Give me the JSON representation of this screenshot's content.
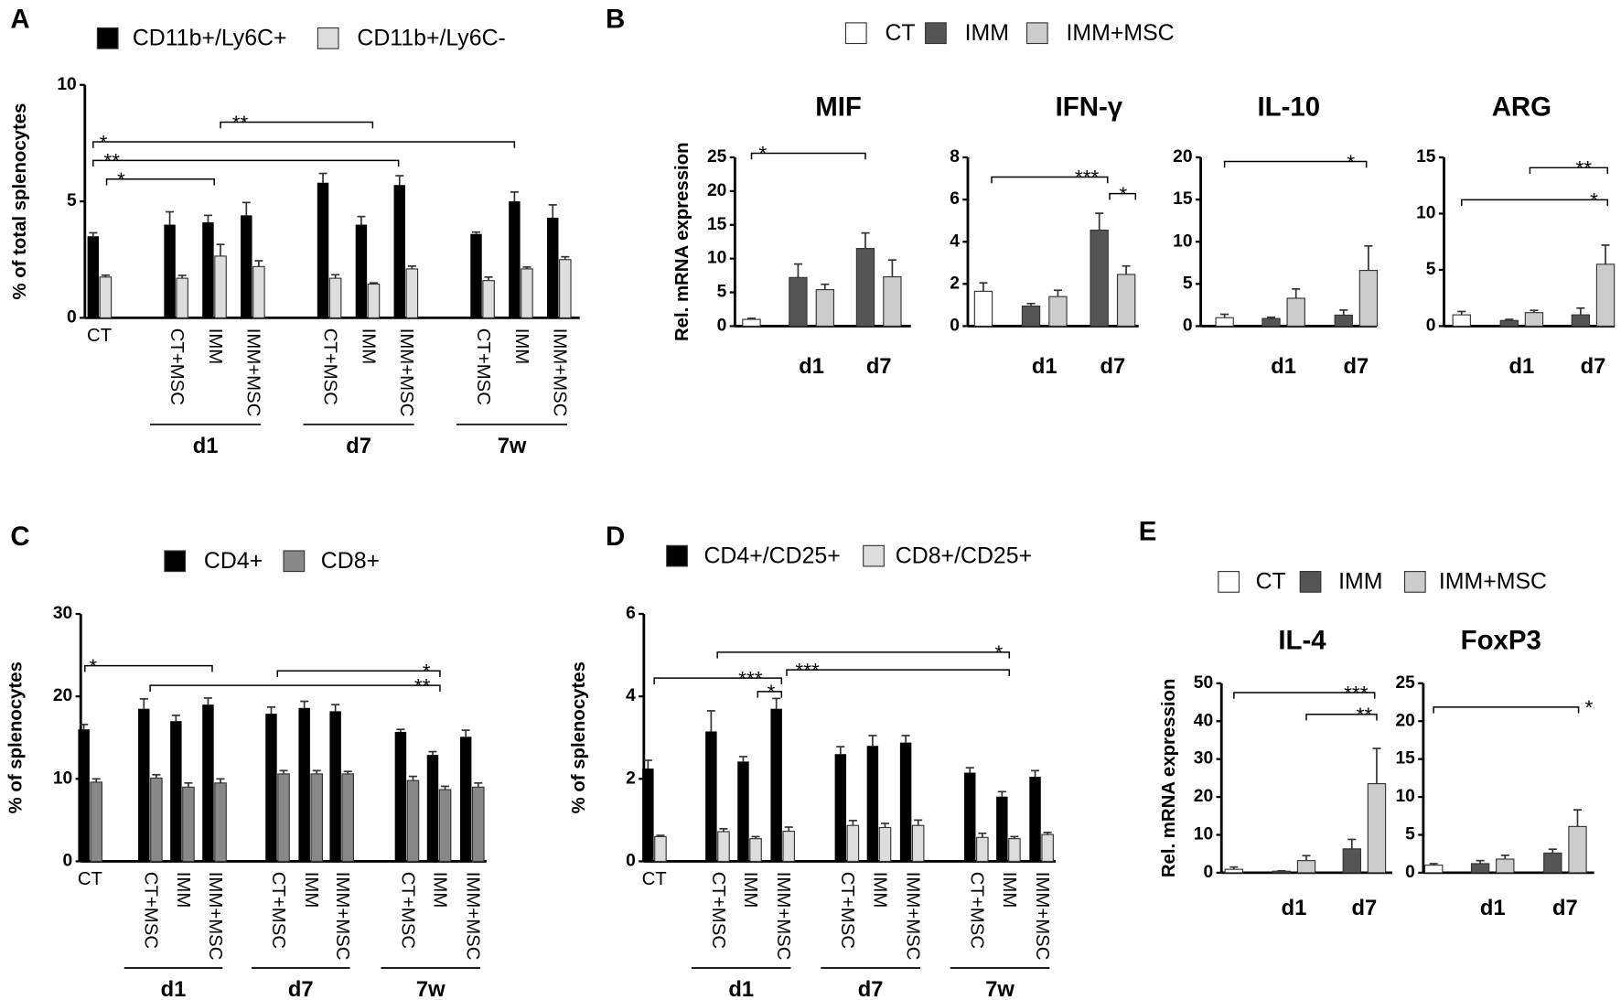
{
  "chart_data": [
    {
      "type": "bar",
      "panel": "A",
      "ylabel": "% of total splenocytes",
      "ylim": [
        0,
        10
      ],
      "yticks": [
        0,
        5,
        10
      ],
      "categories": [
        "CT",
        "CT+MSC",
        "IMM",
        "IMM+MSC",
        "CT+MSC",
        "IMM",
        "IMM+MSC",
        "CT+MSC",
        "IMM",
        "IMM+MSC"
      ],
      "groups": [
        "d1",
        "d7",
        "7w"
      ],
      "series": [
        {
          "name": "CD11b+/Ly6C+",
          "color": "#000000",
          "values": [
            3.5,
            4.0,
            4.1,
            4.4,
            5.8,
            4.0,
            5.7,
            3.6,
            5.0,
            4.3
          ],
          "errors": [
            0.15,
            0.55,
            0.3,
            0.55,
            0.4,
            0.35,
            0.4,
            0.08,
            0.4,
            0.55
          ]
        },
        {
          "name": "CD11b+/Ly6C-",
          "color": "#dddddd",
          "values": [
            1.75,
            1.7,
            2.65,
            2.2,
            1.7,
            1.45,
            2.1,
            1.6,
            2.1,
            2.5
          ],
          "errors": [
            0.08,
            0.12,
            0.5,
            0.25,
            0.15,
            0.05,
            0.12,
            0.15,
            0.08,
            0.12
          ]
        }
      ],
      "annotations": [
        "**",
        "*",
        "**",
        "*"
      ]
    },
    {
      "type": "bar",
      "panel": "B",
      "title": "MIF",
      "ylabel": "Rel. mRNA expression",
      "ylim": [
        0,
        25
      ],
      "yticks": [
        0,
        5,
        10,
        15,
        20,
        25
      ],
      "categories": [
        null,
        "d1",
        "d7"
      ],
      "series": [
        {
          "name": "CT",
          "color": "#ffffff",
          "values": [
            1.0,
            null,
            null
          ],
          "errors": [
            0.15,
            null,
            null
          ]
        },
        {
          "name": "IMM",
          "color": "#555555",
          "values": [
            null,
            7.2,
            11.5
          ],
          "errors": [
            null,
            2.0,
            2.3
          ]
        },
        {
          "name": "IMM+MSC",
          "color": "#cccccc",
          "values": [
            null,
            5.4,
            7.3
          ],
          "errors": [
            null,
            0.8,
            2.5
          ]
        }
      ],
      "annotations": [
        "*"
      ]
    },
    {
      "type": "bar",
      "title": "IFN-γ",
      "ylim": [
        0,
        8
      ],
      "yticks": [
        0,
        2,
        4,
        6,
        8
      ],
      "categories": [
        null,
        "d1",
        "d7"
      ],
      "series": [
        {
          "color": "#ffffff",
          "values": [
            1.65,
            null,
            null
          ],
          "errors": [
            0.4,
            null,
            null
          ]
        },
        {
          "color": "#555555",
          "values": [
            null,
            0.95,
            4.55
          ],
          "errors": [
            null,
            0.12,
            0.8
          ]
        },
        {
          "color": "#cccccc",
          "values": [
            null,
            1.4,
            2.45
          ],
          "errors": [
            null,
            0.3,
            0.4
          ]
        }
      ],
      "annotations": [
        "***",
        "*"
      ]
    },
    {
      "type": "bar",
      "title": "IL-10",
      "ylim": [
        0,
        20
      ],
      "yticks": [
        0,
        5,
        10,
        15,
        20
      ],
      "categories": [
        null,
        "d1",
        "d7"
      ],
      "series": [
        {
          "color": "#ffffff",
          "values": [
            1.0,
            null,
            null
          ],
          "errors": [
            0.4,
            null,
            null
          ]
        },
        {
          "color": "#555555",
          "values": [
            null,
            0.9,
            1.3
          ],
          "errors": [
            null,
            0.15,
            0.6
          ]
        },
        {
          "color": "#cccccc",
          "values": [
            null,
            3.3,
            6.6
          ],
          "errors": [
            null,
            1.1,
            2.9
          ]
        }
      ],
      "annotations": [
        "*"
      ]
    },
    {
      "type": "bar",
      "title": "ARG",
      "ylim": [
        0,
        15
      ],
      "yticks": [
        0,
        5,
        10,
        15
      ],
      "categories": [
        null,
        "d1",
        "d7"
      ],
      "series": [
        {
          "color": "#ffffff",
          "values": [
            1.0,
            null,
            null
          ],
          "errors": [
            0.3,
            null,
            null
          ]
        },
        {
          "color": "#555555",
          "values": [
            null,
            0.5,
            1.0
          ],
          "errors": [
            null,
            0.1,
            0.6
          ]
        },
        {
          "color": "#cccccc",
          "values": [
            null,
            1.2,
            5.5
          ],
          "errors": [
            null,
            0.2,
            1.7
          ]
        }
      ],
      "annotations": [
        "**",
        "*"
      ]
    },
    {
      "type": "bar",
      "panel": "C",
      "ylabel": "% of splenocytes",
      "ylim": [
        0,
        30
      ],
      "yticks": [
        0,
        10,
        20,
        30
      ],
      "categories": [
        "CT",
        "CT+MSC",
        "IMM",
        "IMM+MSC",
        "CT+MSC",
        "IMM",
        "IMM+MSC",
        "CT+MSC",
        "IMM",
        "IMM+MSC"
      ],
      "groups": [
        "d1",
        "d7",
        "7w"
      ],
      "series": [
        {
          "name": "CD4+",
          "color": "#000000",
          "values": [
            16,
            18.5,
            17,
            19,
            17.9,
            18.6,
            18.2,
            15.7,
            12.9,
            15.1
          ],
          "errors": [
            0.6,
            1.2,
            0.7,
            0.8,
            0.8,
            0.8,
            0.8,
            0.3,
            0.4,
            0.8
          ]
        },
        {
          "name": "CD8+",
          "color": "#888888",
          "values": [
            9.6,
            10.1,
            9.0,
            9.5,
            10.6,
            10.6,
            10.6,
            9.8,
            8.7,
            9.0
          ],
          "errors": [
            0.4,
            0.4,
            0.5,
            0.5,
            0.4,
            0.4,
            0.3,
            0.5,
            0.4,
            0.5
          ]
        }
      ],
      "annotations": [
        "*",
        "*",
        "**"
      ]
    },
    {
      "type": "bar",
      "panel": "D",
      "ylabel": "% of splenocytes",
      "ylim": [
        0,
        6
      ],
      "yticks": [
        0,
        2,
        4,
        6
      ],
      "categories": [
        "CT",
        "CT+MSC",
        "IMM",
        "IMM+MSC",
        "CT+MSC",
        "IMM",
        "IMM+MSC",
        "CT+MSC",
        "IMM",
        "IMM+MSC"
      ],
      "groups": [
        "d1",
        "d7",
        "7w"
      ],
      "series": [
        {
          "name": "CD4+/CD25+",
          "color": "#000000",
          "values": [
            2.25,
            3.15,
            2.42,
            3.7,
            2.6,
            2.8,
            2.88,
            2.15,
            1.57,
            2.05
          ],
          "errors": [
            0.2,
            0.5,
            0.12,
            0.25,
            0.18,
            0.25,
            0.17,
            0.12,
            0.12,
            0.15
          ]
        },
        {
          "name": "CD8+/CD25+",
          "color": "#dddddd",
          "values": [
            0.6,
            0.72,
            0.55,
            0.73,
            0.87,
            0.82,
            0.87,
            0.58,
            0.55,
            0.65
          ],
          "errors": [
            0.03,
            0.07,
            0.05,
            0.1,
            0.12,
            0.1,
            0.13,
            0.1,
            0.05,
            0.05
          ]
        }
      ],
      "annotations": [
        "*",
        "***",
        "*",
        "***"
      ]
    },
    {
      "type": "bar",
      "panel": "E",
      "title": "IL-4",
      "ylabel": "Rel. mRNA expression",
      "ylim": [
        0,
        50
      ],
      "yticks": [
        0,
        10,
        20,
        30,
        40,
        50
      ],
      "categories": [
        null,
        "d1",
        "d7"
      ],
      "series": [
        {
          "name": "CT",
          "color": "#ffffff",
          "values": [
            0.9,
            null,
            null
          ],
          "errors": [
            0.6,
            null,
            null
          ]
        },
        {
          "name": "IMM",
          "color": "#555555",
          "values": [
            null,
            0.4,
            6.3
          ],
          "errors": [
            null,
            0.1,
            2.5
          ]
        },
        {
          "name": "IMM+MSC",
          "color": "#cccccc",
          "values": [
            null,
            3.2,
            23.5
          ],
          "errors": [
            null,
            1.3,
            9.3
          ]
        }
      ],
      "annotations": [
        "***",
        "**"
      ]
    },
    {
      "type": "bar",
      "title": "FoxP3",
      "ylim": [
        0,
        25
      ],
      "yticks": [
        0,
        5,
        10,
        15,
        20,
        25
      ],
      "categories": [
        null,
        "d1",
        "d7"
      ],
      "series": [
        {
          "color": "#ffffff",
          "values": [
            1.0,
            null,
            null
          ],
          "errors": [
            0.2,
            null,
            null
          ]
        },
        {
          "color": "#555555",
          "values": [
            null,
            1.2,
            2.6
          ],
          "errors": [
            null,
            0.4,
            0.5
          ]
        },
        {
          "color": "#cccccc",
          "values": [
            null,
            1.8,
            6.1
          ],
          "errors": [
            null,
            0.5,
            2.2
          ]
        }
      ],
      "annotations": [
        "*"
      ]
    }
  ]
}
